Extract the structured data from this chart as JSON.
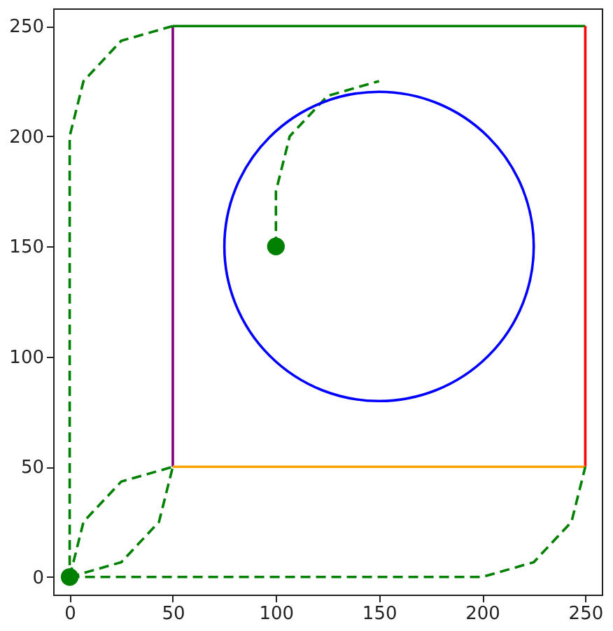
{
  "chart_data": {
    "type": "line",
    "xlim": [
      -8,
      258
    ],
    "ylim": [
      -8,
      258
    ],
    "xticks": [
      0,
      50,
      100,
      150,
      200,
      250
    ],
    "yticks": [
      0,
      50,
      100,
      150,
      200,
      250
    ],
    "grid": false,
    "series": [
      {
        "color": "#800080",
        "x": [
          50,
          50
        ],
        "values": [
          50,
          250
        ]
      },
      {
        "color": "#008000",
        "x": [
          50,
          250
        ],
        "values": [
          250,
          250
        ]
      },
      {
        "color": "#ff0000",
        "x": [
          250,
          250
        ],
        "values": [
          250,
          50
        ]
      },
      {
        "color": "#ffa500",
        "x": [
          250,
          50
        ],
        "values": [
          50,
          50
        ]
      },
      {
        "color": "#008000",
        "line_style": "dashed",
        "x": [
          50,
          25,
          6.7,
          0,
          0
        ],
        "values": [
          250,
          243.3,
          225,
          200,
          0
        ]
      },
      {
        "color": "#008000",
        "line_style": "dashed",
        "x": [
          0,
          6.7,
          25,
          50
        ],
        "values": [
          0,
          25,
          43.3,
          50
        ]
      },
      {
        "color": "#008000",
        "line_style": "dashed",
        "x": [
          0,
          25,
          43.3,
          50
        ],
        "values": [
          0,
          6.7,
          25,
          50
        ]
      },
      {
        "color": "#008000",
        "line_style": "dashed",
        "x": [
          0,
          200,
          225,
          243.3,
          250
        ],
        "values": [
          0,
          0,
          6.7,
          25,
          50
        ]
      },
      {
        "color": "#008000",
        "line_style": "dashed",
        "x": [
          100,
          100,
          106.7,
          125,
          150
        ],
        "values": [
          150,
          175,
          200,
          218.3,
          225
        ]
      },
      {
        "type": "scatter",
        "marker": "circle",
        "color": "#008000",
        "x": [
          0,
          100
        ],
        "values": [
          0,
          150
        ]
      }
    ]
  }
}
